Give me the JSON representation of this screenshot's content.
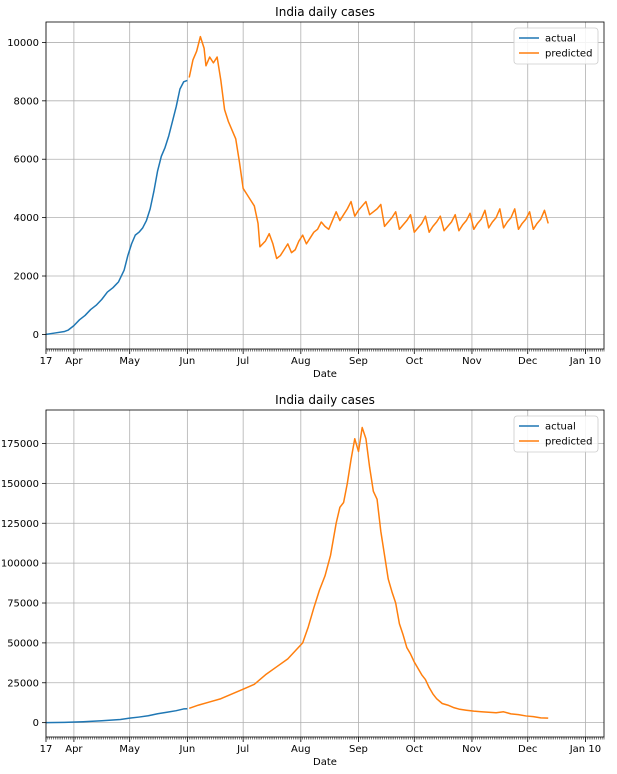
{
  "chart_data": [
    {
      "type": "line",
      "title": "India daily cases",
      "xlabel": "Date",
      "ylabel": "",
      "xlim": [
        0,
        300
      ],
      "ylim": [
        -500,
        10700
      ],
      "xtick_labels": [
        {
          "x": 0,
          "label": "17"
        },
        {
          "x": 15,
          "label": "Apr"
        },
        {
          "x": 45,
          "label": "May"
        },
        {
          "x": 76,
          "label": "Jun"
        },
        {
          "x": 106,
          "label": "Jul"
        },
        {
          "x": 137,
          "label": "Aug"
        },
        {
          "x": 168,
          "label": "Sep"
        },
        {
          "x": 198,
          "label": "Oct"
        },
        {
          "x": 229,
          "label": "Nov"
        },
        {
          "x": 259,
          "label": "Dec"
        },
        {
          "x": 290,
          "label": "Jan 10"
        }
      ],
      "yticks": [
        0,
        2000,
        4000,
        6000,
        8000,
        10000
      ],
      "grid": true,
      "legend_position": "top-right",
      "series": [
        {
          "name": "actual",
          "color": "#1f77b4",
          "points": [
            [
              0,
              0
            ],
            [
              5,
              50
            ],
            [
              10,
              100
            ],
            [
              12,
              150
            ],
            [
              15,
              300
            ],
            [
              18,
              500
            ],
            [
              21,
              650
            ],
            [
              24,
              850
            ],
            [
              27,
              1000
            ],
            [
              30,
              1200
            ],
            [
              33,
              1450
            ],
            [
              36,
              1600
            ],
            [
              39,
              1800
            ],
            [
              42,
              2200
            ],
            [
              44,
              2700
            ],
            [
              46,
              3100
            ],
            [
              48,
              3400
            ],
            [
              50,
              3500
            ],
            [
              52,
              3650
            ],
            [
              54,
              3900
            ],
            [
              56,
              4300
            ],
            [
              58,
              4900
            ],
            [
              60,
              5600
            ],
            [
              62,
              6100
            ],
            [
              64,
              6400
            ],
            [
              66,
              6800
            ],
            [
              68,
              7300
            ],
            [
              70,
              7800
            ],
            [
              72,
              8400
            ],
            [
              74,
              8650
            ],
            [
              76,
              8700
            ]
          ]
        },
        {
          "name": "predicted",
          "color": "#ff7f0e",
          "points": [
            [
              77,
              8800
            ],
            [
              79,
              9400
            ],
            [
              81,
              9700
            ],
            [
              83,
              10200
            ],
            [
              85,
              9800
            ],
            [
              86,
              9200
            ],
            [
              88,
              9500
            ],
            [
              90,
              9300
            ],
            [
              92,
              9500
            ],
            [
              94,
              8700
            ],
            [
              96,
              7700
            ],
            [
              98,
              7300
            ],
            [
              100,
              7000
            ],
            [
              102,
              6700
            ],
            [
              104,
              5900
            ],
            [
              106,
              5000
            ],
            [
              108,
              4800
            ],
            [
              110,
              4600
            ],
            [
              112,
              4400
            ],
            [
              114,
              3800
            ],
            [
              115,
              3000
            ],
            [
              118,
              3200
            ],
            [
              120,
              3450
            ],
            [
              122,
              3100
            ],
            [
              124,
              2600
            ],
            [
              126,
              2700
            ],
            [
              128,
              2900
            ],
            [
              130,
              3100
            ],
            [
              132,
              2800
            ],
            [
              134,
              2900
            ],
            [
              136,
              3200
            ],
            [
              138,
              3400
            ],
            [
              140,
              3100
            ],
            [
              142,
              3300
            ],
            [
              144,
              3500
            ],
            [
              146,
              3600
            ],
            [
              148,
              3850
            ],
            [
              150,
              3700
            ],
            [
              152,
              3600
            ],
            [
              154,
              3900
            ],
            [
              156,
              4200
            ],
            [
              158,
              3900
            ],
            [
              160,
              4100
            ],
            [
              162,
              4300
            ],
            [
              164,
              4550
            ],
            [
              166,
              4050
            ],
            [
              168,
              4250
            ],
            [
              170,
              4400
            ],
            [
              172,
              4550
            ],
            [
              174,
              4100
            ],
            [
              176,
              4200
            ],
            [
              178,
              4300
            ],
            [
              180,
              4450
            ],
            [
              182,
              3700
            ],
            [
              184,
              3850
            ],
            [
              186,
              4000
            ],
            [
              188,
              4200
            ],
            [
              190,
              3600
            ],
            [
              192,
              3750
            ],
            [
              194,
              3900
            ],
            [
              196,
              4100
            ],
            [
              198,
              3500
            ],
            [
              200,
              3650
            ],
            [
              202,
              3800
            ],
            [
              204,
              4050
            ],
            [
              206,
              3500
            ],
            [
              208,
              3700
            ],
            [
              210,
              3850
            ],
            [
              212,
              4050
            ],
            [
              214,
              3550
            ],
            [
              216,
              3700
            ],
            [
              218,
              3850
            ],
            [
              220,
              4100
            ],
            [
              222,
              3550
            ],
            [
              224,
              3750
            ],
            [
              226,
              3900
            ],
            [
              228,
              4150
            ],
            [
              230,
              3600
            ],
            [
              232,
              3800
            ],
            [
              234,
              3950
            ],
            [
              236,
              4250
            ],
            [
              238,
              3650
            ],
            [
              240,
              3850
            ],
            [
              242,
              4000
            ],
            [
              244,
              4300
            ],
            [
              246,
              3650
            ],
            [
              248,
              3850
            ],
            [
              250,
              4000
            ],
            [
              252,
              4300
            ],
            [
              254,
              3600
            ],
            [
              256,
              3800
            ],
            [
              258,
              3950
            ],
            [
              260,
              4200
            ],
            [
              262,
              3600
            ],
            [
              264,
              3800
            ],
            [
              266,
              3950
            ],
            [
              268,
              4250
            ],
            [
              270,
              3800
            ]
          ]
        }
      ]
    },
    {
      "type": "line",
      "title": "India daily cases",
      "xlabel": "Date",
      "ylabel": "",
      "xlim": [
        0,
        300
      ],
      "ylim": [
        -9000,
        196000
      ],
      "xtick_labels": [
        {
          "x": 0,
          "label": "17"
        },
        {
          "x": 15,
          "label": "Apr"
        },
        {
          "x": 45,
          "label": "May"
        },
        {
          "x": 76,
          "label": "Jun"
        },
        {
          "x": 106,
          "label": "Jul"
        },
        {
          "x": 137,
          "label": "Aug"
        },
        {
          "x": 168,
          "label": "Sep"
        },
        {
          "x": 198,
          "label": "Oct"
        },
        {
          "x": 229,
          "label": "Nov"
        },
        {
          "x": 259,
          "label": "Dec"
        },
        {
          "x": 290,
          "label": "Jan 10"
        }
      ],
      "yticks": [
        0,
        25000,
        50000,
        75000,
        100000,
        125000,
        150000,
        175000
      ],
      "grid": true,
      "legend_position": "top-right",
      "series": [
        {
          "name": "actual",
          "color": "#1f77b4",
          "points": [
            [
              0,
              0
            ],
            [
              10,
              200
            ],
            [
              20,
              600
            ],
            [
              30,
              1200
            ],
            [
              40,
              2000
            ],
            [
              45,
              2800
            ],
            [
              50,
              3500
            ],
            [
              55,
              4300
            ],
            [
              60,
              5600
            ],
            [
              65,
              6500
            ],
            [
              70,
              7500
            ],
            [
              74,
              8600
            ],
            [
              76,
              8700
            ]
          ]
        },
        {
          "name": "predicted",
          "color": "#ff7f0e",
          "points": [
            [
              77,
              9000
            ],
            [
              82,
              11000
            ],
            [
              88,
              13000
            ],
            [
              94,
              15000
            ],
            [
              100,
              18000
            ],
            [
              106,
              21000
            ],
            [
              112,
              24000
            ],
            [
              118,
              30000
            ],
            [
              124,
              35000
            ],
            [
              130,
              40000
            ],
            [
              134,
              45000
            ],
            [
              138,
              50000
            ],
            [
              141,
              60000
            ],
            [
              144,
              72000
            ],
            [
              147,
              83000
            ],
            [
              150,
              92000
            ],
            [
              153,
              105000
            ],
            [
              156,
              125000
            ],
            [
              158,
              135000
            ],
            [
              160,
              138000
            ],
            [
              162,
              150000
            ],
            [
              164,
              165000
            ],
            [
              166,
              178000
            ],
            [
              168,
              170000
            ],
            [
              170,
              185000
            ],
            [
              172,
              178000
            ],
            [
              174,
              160000
            ],
            [
              176,
              145000
            ],
            [
              178,
              140000
            ],
            [
              180,
              120000
            ],
            [
              182,
              105000
            ],
            [
              184,
              90000
            ],
            [
              186,
              82000
            ],
            [
              188,
              75000
            ],
            [
              190,
              62000
            ],
            [
              192,
              55000
            ],
            [
              194,
              47000
            ],
            [
              196,
              43000
            ],
            [
              198,
              38000
            ],
            [
              200,
              34000
            ],
            [
              202,
              30000
            ],
            [
              204,
              27000
            ],
            [
              206,
              22000
            ],
            [
              208,
              18000
            ],
            [
              210,
              15000
            ],
            [
              213,
              12000
            ],
            [
              216,
              11000
            ],
            [
              219,
              9500
            ],
            [
              222,
              8500
            ],
            [
              226,
              7800
            ],
            [
              230,
              7200
            ],
            [
              234,
              6800
            ],
            [
              238,
              6500
            ],
            [
              242,
              6200
            ],
            [
              246,
              6800
            ],
            [
              250,
              5500
            ],
            [
              254,
              5000
            ],
            [
              258,
              4200
            ],
            [
              262,
              3800
            ],
            [
              266,
              3000
            ],
            [
              270,
              2800
            ]
          ]
        }
      ]
    }
  ]
}
